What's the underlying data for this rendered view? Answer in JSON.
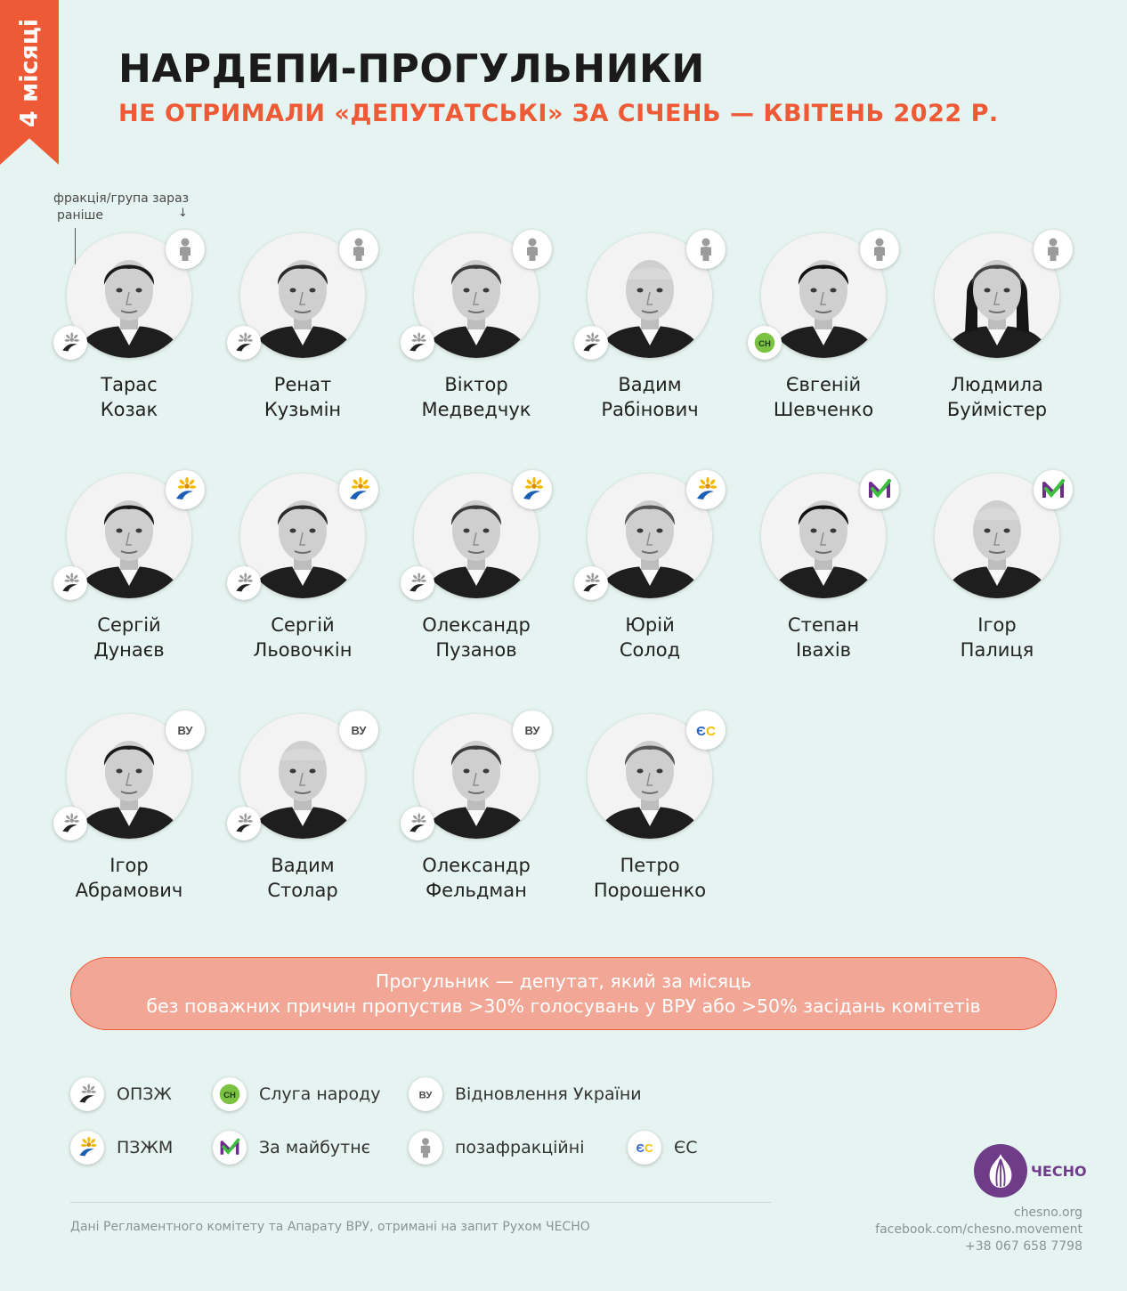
{
  "ribbon": {
    "label": "4 місяці"
  },
  "header": {
    "title": "НАРДЕПИ-ПРОГУЛЬНИКИ",
    "subtitle": "НЕ ОТРИМАЛИ «ДЕПУТАТСЬКІ» ЗА СІЧЕНЬ — КВІТЕНЬ 2022 Р."
  },
  "hint": {
    "now": "фракція/група зараз",
    "arrow": "↓",
    "before": "раніше"
  },
  "deputies": [
    {
      "first": "Тарас",
      "last": "Козак",
      "now": "позафракційні",
      "before": "ОПЗЖ"
    },
    {
      "first": "Ренат",
      "last": "Кузьмін",
      "now": "позафракційні",
      "before": "ОПЗЖ"
    },
    {
      "first": "Віктор",
      "last": "Медведчук",
      "now": "позафракційні",
      "before": "ОПЗЖ"
    },
    {
      "first": "Вадим",
      "last": "Рабінович",
      "now": "позафракційні",
      "before": "ОПЗЖ"
    },
    {
      "first": "Євгеній",
      "last": "Шевченко",
      "now": "позафракційні",
      "before": "Слуга народу"
    },
    {
      "first": "Людмила",
      "last": "Буймістер",
      "now": "позафракційні",
      "before": ""
    },
    {
      "first": "Сергій",
      "last": "Дунаєв",
      "now": "ПЗЖМ",
      "before": "ОПЗЖ"
    },
    {
      "first": "Сергій",
      "last": "Льовочкін",
      "now": "ПЗЖМ",
      "before": "ОПЗЖ"
    },
    {
      "first": "Олександр",
      "last": "Пузанов",
      "now": "ПЗЖМ",
      "before": "ОПЗЖ"
    },
    {
      "first": "Юрій",
      "last": "Солод",
      "now": "ПЗЖМ",
      "before": "ОПЗЖ"
    },
    {
      "first": "Степан",
      "last": "Івахів",
      "now": "За майбутнє",
      "before": ""
    },
    {
      "first": "Ігор",
      "last": "Палиця",
      "now": "За майбутнє",
      "before": ""
    },
    {
      "first": "Ігор",
      "last": "Абрамович",
      "now": "Відновлення України",
      "before": "ОПЗЖ"
    },
    {
      "first": "Вадим",
      "last": "Столар",
      "now": "Відновлення України",
      "before": "ОПЗЖ"
    },
    {
      "first": "Олександр",
      "last": "Фельдман",
      "now": "Відновлення України",
      "before": "ОПЗЖ"
    },
    {
      "first": "Петро",
      "last": "Порошенко",
      "now": "ЄС",
      "before": ""
    }
  ],
  "definition": {
    "line1": "Прогульник — депутат, який за місяць",
    "line2": "без поважних причин пропустив >30% голосувань у ВРУ або >50% засідань комітетів"
  },
  "legend": [
    {
      "label": "ОПЗЖ",
      "icon": "opzzh-icon"
    },
    {
      "label": "Слуга народу",
      "icon": "sluha-narodu-icon",
      "badge": "СН"
    },
    {
      "label": "Відновлення України",
      "icon": "vidnovlennia-icon",
      "badge": "ВУ"
    },
    {
      "label": "ПЗЖМ",
      "icon": "pzzhm-icon"
    },
    {
      "label": "За майбутнє",
      "icon": "za-maibutnie-icon"
    },
    {
      "label": "позафракційні",
      "icon": "independent-icon"
    },
    {
      "label": "ЄС",
      "icon": "yes-icon",
      "badge_e": "Є",
      "badge_s": "С"
    }
  ],
  "colors": {
    "accent": "#ee5a36",
    "background": "#e6f4f1",
    "definition_bg": "#f2a796",
    "brand": "#6f3c8a",
    "sluha": "#7cc242",
    "maibutnie_green": "#3cbf3c",
    "maibutnie_purple": "#6a2e8a",
    "yes_blue": "#2a64c4",
    "yes_yellow": "#f5c000"
  },
  "logo": {
    "word": "ЧЕСНО"
  },
  "footer": {
    "source": "Дані Регламентного комітету та Апарату ВРУ, отримані на запит Рухом ЧЕСНО",
    "site": "chesno.org",
    "facebook": "facebook.com/chesno.movement",
    "phone": "+38 067 658 7798"
  }
}
